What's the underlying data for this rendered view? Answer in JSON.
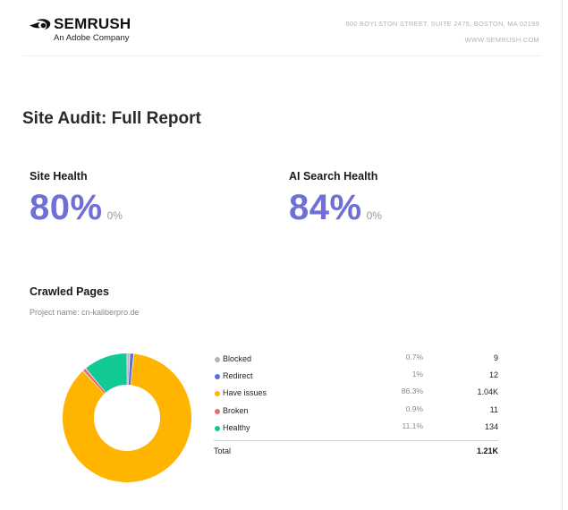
{
  "header": {
    "logo_word": "SEMRUSH",
    "logo_sub": "An Adobe Company",
    "address": "800 BOYLSTON STREET, SUITE 2475, BOSTON, MA 02199",
    "website": "WWW.SEMRUSH.COM"
  },
  "report": {
    "title": "Site Audit: Full Report"
  },
  "metrics": [
    {
      "label": "Site Health",
      "value": "80%",
      "delta": "0%"
    },
    {
      "label": "AI Search Health",
      "value": "84%",
      "delta": "0%"
    }
  ],
  "crawled": {
    "title": "Crawled Pages",
    "project": "Project name: cn-kaliberpro.de",
    "total_label": "Total",
    "total_value": "1.21K"
  },
  "colors": {
    "accent": "#6f6fd8",
    "blocked": "#b5b5b5",
    "redirect": "#5b6fd6",
    "have_issues": "#ffb400",
    "broken": "#ee6b6b",
    "healthy": "#11c994"
  },
  "chart_data": {
    "type": "pie",
    "categories": [
      "Blocked",
      "Redirect",
      "Have issues",
      "Broken",
      "Healthy"
    ],
    "values": [
      0.7,
      1,
      86.3,
      0.9,
      11.1
    ],
    "percent_labels": [
      "0.7%",
      "1%",
      "86.3%",
      "0.9%",
      "11.1%"
    ],
    "counts": [
      "9",
      "12",
      "1.04K",
      "11",
      "134"
    ],
    "colors": [
      "#b5b5b5",
      "#5b6fd6",
      "#ffb400",
      "#ee6b6b",
      "#11c994"
    ],
    "donut": true
  }
}
